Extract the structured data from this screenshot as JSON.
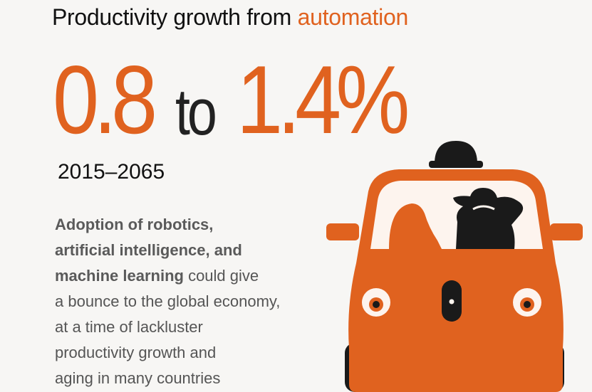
{
  "headline": {
    "prefix": "Productivity growth from ",
    "highlight": "automation"
  },
  "range": {
    "low": "0.8",
    "connector": "to",
    "high": "1.4%"
  },
  "period": "2015–2065",
  "description": {
    "bold_1": "Adoption of robotics,",
    "bold_2": "artificial intelligence, and",
    "bold_3": "machine learning",
    "text_3": " could give",
    "text_4": "a bounce to the global economy,",
    "text_5": "at a time of lackluster",
    "text_6": "productivity growth and",
    "text_7": "aging in many countries"
  },
  "illustration": {
    "icon": "self-driving-car-icon",
    "colors": {
      "accent": "#e0621f",
      "dark": "#1a1a1a",
      "light": "#fdf4ee"
    }
  }
}
